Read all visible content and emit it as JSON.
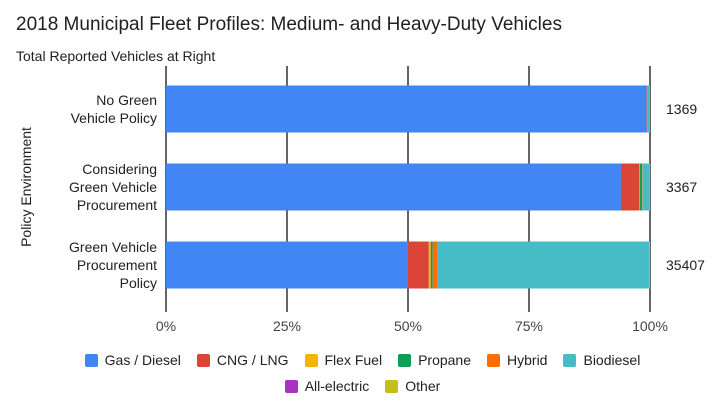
{
  "chart_data": {
    "type": "bar",
    "orientation": "horizontal",
    "stacked": "percent",
    "title": "2018 Municipal Fleet Profiles: Medium- and Heavy-Duty Vehicles",
    "subtitle": "Total Reported Vehicles at Right",
    "ylabel": "Policy Environment",
    "xlabel": "",
    "xlim": [
      0,
      100
    ],
    "x_ticks": [
      "0%",
      "25%",
      "50%",
      "75%",
      "100%"
    ],
    "grid": true,
    "legend_position": "bottom",
    "categories": [
      [
        "No Green",
        "Vehicle Policy"
      ],
      [
        "Considering",
        "Green Vehicle",
        "Procurement"
      ],
      [
        "Green Vehicle",
        "Procurement",
        "Policy"
      ]
    ],
    "totals": [
      "1369",
      "3367",
      "35407"
    ],
    "series": [
      {
        "name": "Gas / Diesel",
        "color": "#4285f4",
        "values": [
          99.3,
          94.0,
          50.0
        ]
      },
      {
        "name": "CNG / LNG",
        "color": "#db4437",
        "values": [
          0.1,
          3.8,
          4.3
        ]
      },
      {
        "name": "Flex Fuel",
        "color": "#f4b400",
        "values": [
          0.0,
          0.1,
          0.4
        ]
      },
      {
        "name": "Propane",
        "color": "#0f9d58",
        "values": [
          0.0,
          0.5,
          0.4
        ]
      },
      {
        "name": "Hybrid",
        "color": "#ff6d00",
        "values": [
          0.0,
          0.1,
          0.9
        ]
      },
      {
        "name": "Biodiesel",
        "color": "#46bdc6",
        "values": [
          0.6,
          1.4,
          43.8
        ]
      },
      {
        "name": "All-electric",
        "color": "#ab30c4",
        "values": [
          0.0,
          0.0,
          0.0
        ]
      },
      {
        "name": "Other",
        "color": "#c5bf1a",
        "values": [
          0.0,
          0.1,
          0.2
        ]
      }
    ]
  }
}
